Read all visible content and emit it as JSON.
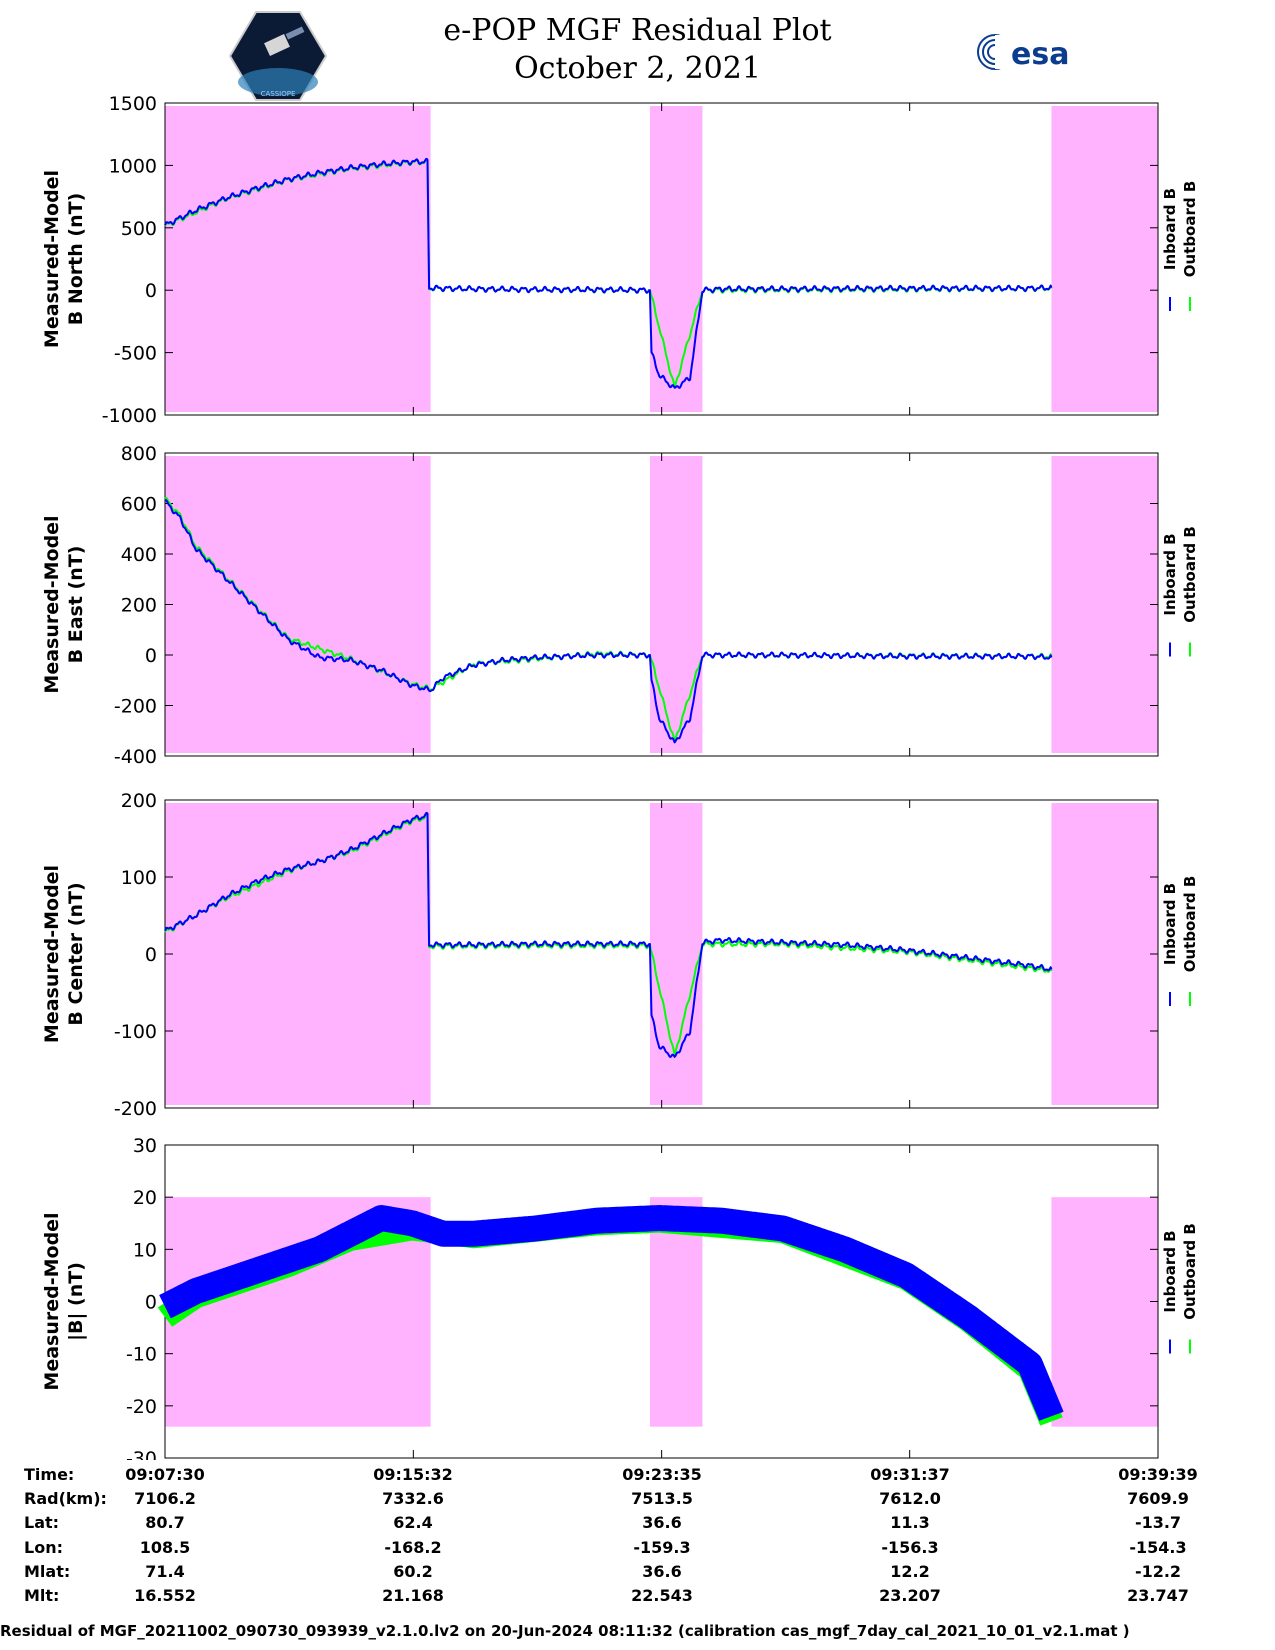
{
  "header": {
    "title": "e-POP MGF Residual Plot",
    "date": "October 2, 2021",
    "left_logo_text": "CASSIOPE",
    "right_logo_text": "esa"
  },
  "legend": {
    "inboard": "Inboard B",
    "outboard": "Outboard B",
    "inboard_color": "#0000ff",
    "outboard_color": "#00ff00"
  },
  "colors": {
    "shade": "#ffb3ff",
    "inboard": "#0000ff",
    "outboard": "#00ff00"
  },
  "chart_data": [
    {
      "type": "line",
      "ylabel": [
        "Measured-Model",
        "B North (nT)"
      ],
      "ylim": [
        -1000,
        1500
      ],
      "yticks": [
        1500,
        1000,
        500,
        0,
        -500,
        -1000
      ],
      "xlim_minutes": [
        0,
        32.15
      ],
      "shaded_intervals_minutes": [
        [
          0,
          8.6
        ],
        [
          15.7,
          17.4
        ],
        [
          28.7,
          32.15
        ]
      ],
      "series": [
        {
          "name": "Inboard B",
          "x": [
            0,
            1,
            2,
            3,
            4,
            5,
            6,
            7,
            8,
            8.5,
            8.55,
            9,
            10,
            12,
            14,
            15.7,
            15.75,
            16,
            16.5,
            17,
            17.4,
            18,
            20,
            24,
            28,
            28.7
          ],
          "y": [
            520,
            640,
            740,
            820,
            890,
            940,
            980,
            1010,
            1030,
            1030,
            20,
            15,
            10,
            5,
            5,
            0,
            -500,
            -680,
            -790,
            -700,
            0,
            10,
            10,
            15,
            15,
            20
          ]
        },
        {
          "name": "Outboard B",
          "x": [
            0,
            2,
            4,
            6,
            8,
            8.5,
            8.55,
            12,
            15.7,
            16.5,
            17.4,
            28.7
          ],
          "y": [
            515,
            735,
            885,
            975,
            1025,
            1025,
            15,
            5,
            0,
            -785,
            0,
            15
          ]
        }
      ]
    },
    {
      "type": "line",
      "ylabel": [
        "Measured-Model",
        "B East (nT)"
      ],
      "ylim": [
        -400,
        800
      ],
      "yticks": [
        800,
        600,
        400,
        200,
        0,
        -200,
        -400
      ],
      "xlim_minutes": [
        0,
        32.15
      ],
      "shaded_intervals_minutes": [
        [
          0,
          8.6
        ],
        [
          15.7,
          17.4
        ],
        [
          28.7,
          32.15
        ]
      ],
      "series": [
        {
          "name": "Inboard B",
          "x": [
            0,
            0.5,
            1,
            2,
            3,
            4,
            5,
            6,
            7,
            8,
            8.6,
            9,
            10,
            11,
            12,
            14,
            15.7,
            15.75,
            16,
            16.5,
            17,
            17.4,
            18,
            20,
            24,
            28,
            28.7
          ],
          "y": [
            610,
            540,
            420,
            300,
            180,
            60,
            -10,
            -20,
            -60,
            -120,
            -140,
            -90,
            -40,
            -20,
            -10,
            0,
            0,
            -100,
            -250,
            -350,
            -250,
            0,
            0,
            0,
            -5,
            -5,
            -10
          ]
        },
        {
          "name": "Outboard B",
          "x": [
            0,
            0.5,
            1,
            2,
            4,
            6,
            8,
            8.6,
            10,
            14,
            15.7,
            16.5,
            17.4,
            28.7
          ],
          "y": [
            620,
            550,
            430,
            305,
            65,
            -15,
            -115,
            -135,
            -35,
            5,
            0,
            -345,
            0,
            -5
          ]
        }
      ]
    },
    {
      "type": "line",
      "ylabel": [
        "Measured-Model",
        "B Center (nT)"
      ],
      "ylim": [
        -200,
        200
      ],
      "yticks": [
        200,
        100,
        0,
        -100,
        -200
      ],
      "xlim_minutes": [
        0,
        32.15
      ],
      "shaded_intervals_minutes": [
        [
          0,
          8.6
        ],
        [
          15.7,
          17.4
        ],
        [
          28.7,
          32.15
        ]
      ],
      "series": [
        {
          "name": "Inboard B",
          "x": [
            0,
            1,
            2,
            3,
            4,
            5,
            6,
            7,
            8,
            8.5,
            8.55,
            10,
            12,
            14,
            15.7,
            15.75,
            16,
            16.5,
            17,
            17.4,
            18,
            20,
            22,
            24,
            26,
            28,
            28.7
          ],
          "y": [
            30,
            50,
            75,
            95,
            110,
            120,
            135,
            155,
            175,
            180,
            12,
            12,
            13,
            13,
            13,
            -80,
            -120,
            -135,
            -100,
            15,
            18,
            15,
            12,
            5,
            -5,
            -15,
            -20
          ]
        },
        {
          "name": "Outboard B",
          "x": [
            0,
            2,
            4,
            6,
            8,
            8.5,
            8.55,
            12,
            15.7,
            16.5,
            17.4,
            20,
            24,
            28.7
          ],
          "y": [
            28,
            73,
            108,
            133,
            173,
            178,
            10,
            11,
            11,
            -133,
            13,
            13,
            3,
            -22
          ]
        }
      ]
    },
    {
      "type": "line",
      "ylabel": [
        "Measured-Model",
        "|B| (nT)"
      ],
      "ylim": [
        -30,
        30
      ],
      "yticks": [
        30,
        20,
        10,
        0,
        -10,
        -20,
        -30
      ],
      "xlim_minutes": [
        0,
        32.15
      ],
      "shaded_intervals_minutes": [
        [
          0,
          8.6
        ],
        [
          15.7,
          17.4
        ],
        [
          28.7,
          32.15
        ]
      ],
      "shade_ylim": [
        -24,
        20
      ],
      "series": [
        {
          "name": "Inboard B",
          "x": [
            0,
            1,
            2,
            3,
            4,
            5,
            6,
            7,
            8,
            9,
            10,
            12,
            14,
            16,
            18,
            20,
            22,
            24,
            26,
            28,
            28.7
          ],
          "y": [
            -1,
            2,
            4,
            6,
            8,
            10,
            13,
            16,
            15,
            13,
            13,
            14,
            15.5,
            16,
            15.5,
            14,
            10,
            5,
            -3,
            -12,
            -22
          ]
        },
        {
          "name": "Outboard B",
          "x": [
            0,
            1,
            2,
            4,
            6,
            8,
            10,
            14,
            16,
            20,
            24,
            26,
            28,
            28.7
          ],
          "y": [
            -3,
            1,
            3,
            7,
            12,
            14,
            12.5,
            15,
            15.5,
            13.5,
            4.5,
            -3.5,
            -13,
            -23
          ]
        }
      ]
    }
  ],
  "x_axis": {
    "labels": [
      "09:07:30",
      "09:15:32",
      "09:23:35",
      "09:31:37",
      "09:39:39"
    ]
  },
  "info_table": {
    "rows": [
      {
        "label": "Time:",
        "values": [
          "09:07:30",
          "09:15:32",
          "09:23:35",
          "09:31:37",
          "09:39:39"
        ]
      },
      {
        "label": "Rad(km):",
        "values": [
          "7106.2",
          "7332.6",
          "7513.5",
          "7612.0",
          "7609.9"
        ]
      },
      {
        "label": "Lat:",
        "values": [
          "80.7",
          "62.4",
          "36.6",
          "11.3",
          "-13.7"
        ]
      },
      {
        "label": "Lon:",
        "values": [
          "108.5",
          "-168.2",
          "-159.3",
          "-156.3",
          "-154.3"
        ]
      },
      {
        "label": "Mlat:",
        "values": [
          "71.4",
          "60.2",
          "36.6",
          "12.2",
          "-12.2"
        ]
      },
      {
        "label": "Mlt:",
        "values": [
          "16.552",
          "21.168",
          "22.543",
          "23.207",
          "23.747"
        ]
      }
    ]
  },
  "footer": "Residual of MGF_20211002_090730_093939_v2.1.0.lv2 on 20-Jun-2024 08:11:32 (calibration cas_mgf_7day_cal_2021_10_01_v2.1.mat )"
}
